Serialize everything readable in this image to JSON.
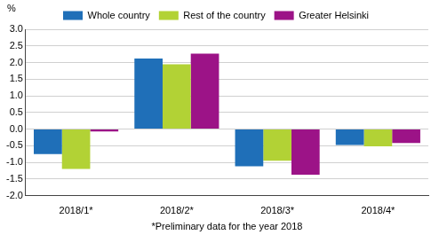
{
  "chart_data": {
    "type": "bar",
    "ylabel": "%",
    "xlabel": "*Preliminary data for the year 2018",
    "categories": [
      "2018/1*",
      "2018/2*",
      "2018/3*",
      "2018/4*"
    ],
    "series": [
      {
        "name": "Whole country",
        "color": "#1f6fb8",
        "values": [
          -0.75,
          2.12,
          -1.12,
          -0.48
        ]
      },
      {
        "name": "Rest of the country",
        "color": "#b2d235",
        "values": [
          -1.2,
          1.95,
          -0.95,
          -0.52
        ]
      },
      {
        "name": "Greater Helsinki",
        "color": "#9c1387",
        "values": [
          -0.07,
          2.27,
          -1.37,
          -0.42
        ]
      }
    ],
    "ylim": [
      -2,
      3
    ],
    "yticks": [
      {
        "value": -2,
        "label": "-2.0"
      },
      -1.5,
      {
        "value": -1,
        "label": "-1.0"
      },
      -0.5,
      {
        "value": 0,
        "label": "0.0"
      },
      0.5,
      {
        "value": 1,
        "label": "1.0"
      },
      1.5,
      {
        "value": 2,
        "label": "2.0"
      },
      2.5,
      {
        "value": 3,
        "label": "3.0"
      }
    ],
    "grid": true,
    "legend": "upper left"
  }
}
